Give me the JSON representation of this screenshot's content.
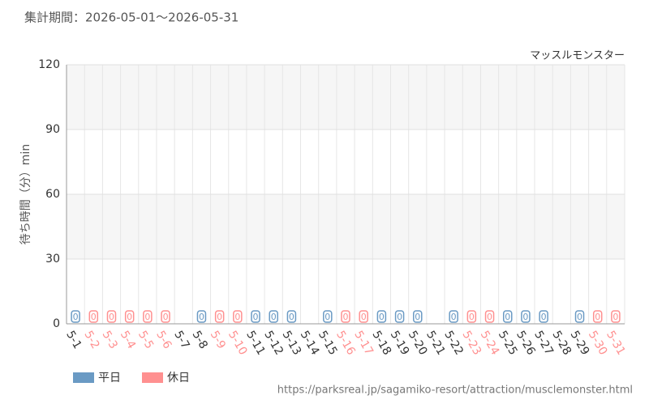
{
  "chart_data": {
    "type": "bar",
    "title": "集計期間：2026-05-01～2026-05-31",
    "annotation": "マッスルモンスター",
    "y_label": "待ち時間（分）min",
    "source": "https://parksreal.jp/sagamiko-resort/attraction/musclemonster.html",
    "categories": [
      "5-1",
      "5-2",
      "5-3",
      "5-4",
      "5-5",
      "5-6",
      "5-7",
      "5-8",
      "5-9",
      "5-10",
      "5-11",
      "5-12",
      "5-13",
      "5-14",
      "5-15",
      "5-16",
      "5-17",
      "5-18",
      "5-19",
      "5-20",
      "5-21",
      "5-22",
      "5-23",
      "5-24",
      "5-25",
      "5-26",
      "5-27",
      "5-28",
      "5-29",
      "5-30",
      "5-31"
    ],
    "series": [
      {
        "name": "平日",
        "color": "#6a9ac4",
        "values": [
          0,
          null,
          null,
          null,
          null,
          null,
          null,
          0,
          null,
          null,
          0,
          0,
          0,
          null,
          0,
          null,
          null,
          0,
          0,
          0,
          null,
          0,
          null,
          null,
          0,
          0,
          0,
          null,
          0,
          null,
          null
        ]
      },
      {
        "name": "休日",
        "color": "#ff9090",
        "values": [
          null,
          0,
          0,
          0,
          0,
          0,
          null,
          null,
          0,
          0,
          null,
          null,
          null,
          null,
          null,
          0,
          0,
          null,
          null,
          null,
          null,
          null,
          0,
          0,
          null,
          null,
          null,
          null,
          null,
          0,
          0
        ]
      }
    ],
    "ylim": [
      0,
      120
    ],
    "yticks": [
      0,
      30,
      60,
      90,
      120
    ],
    "grid": true
  }
}
